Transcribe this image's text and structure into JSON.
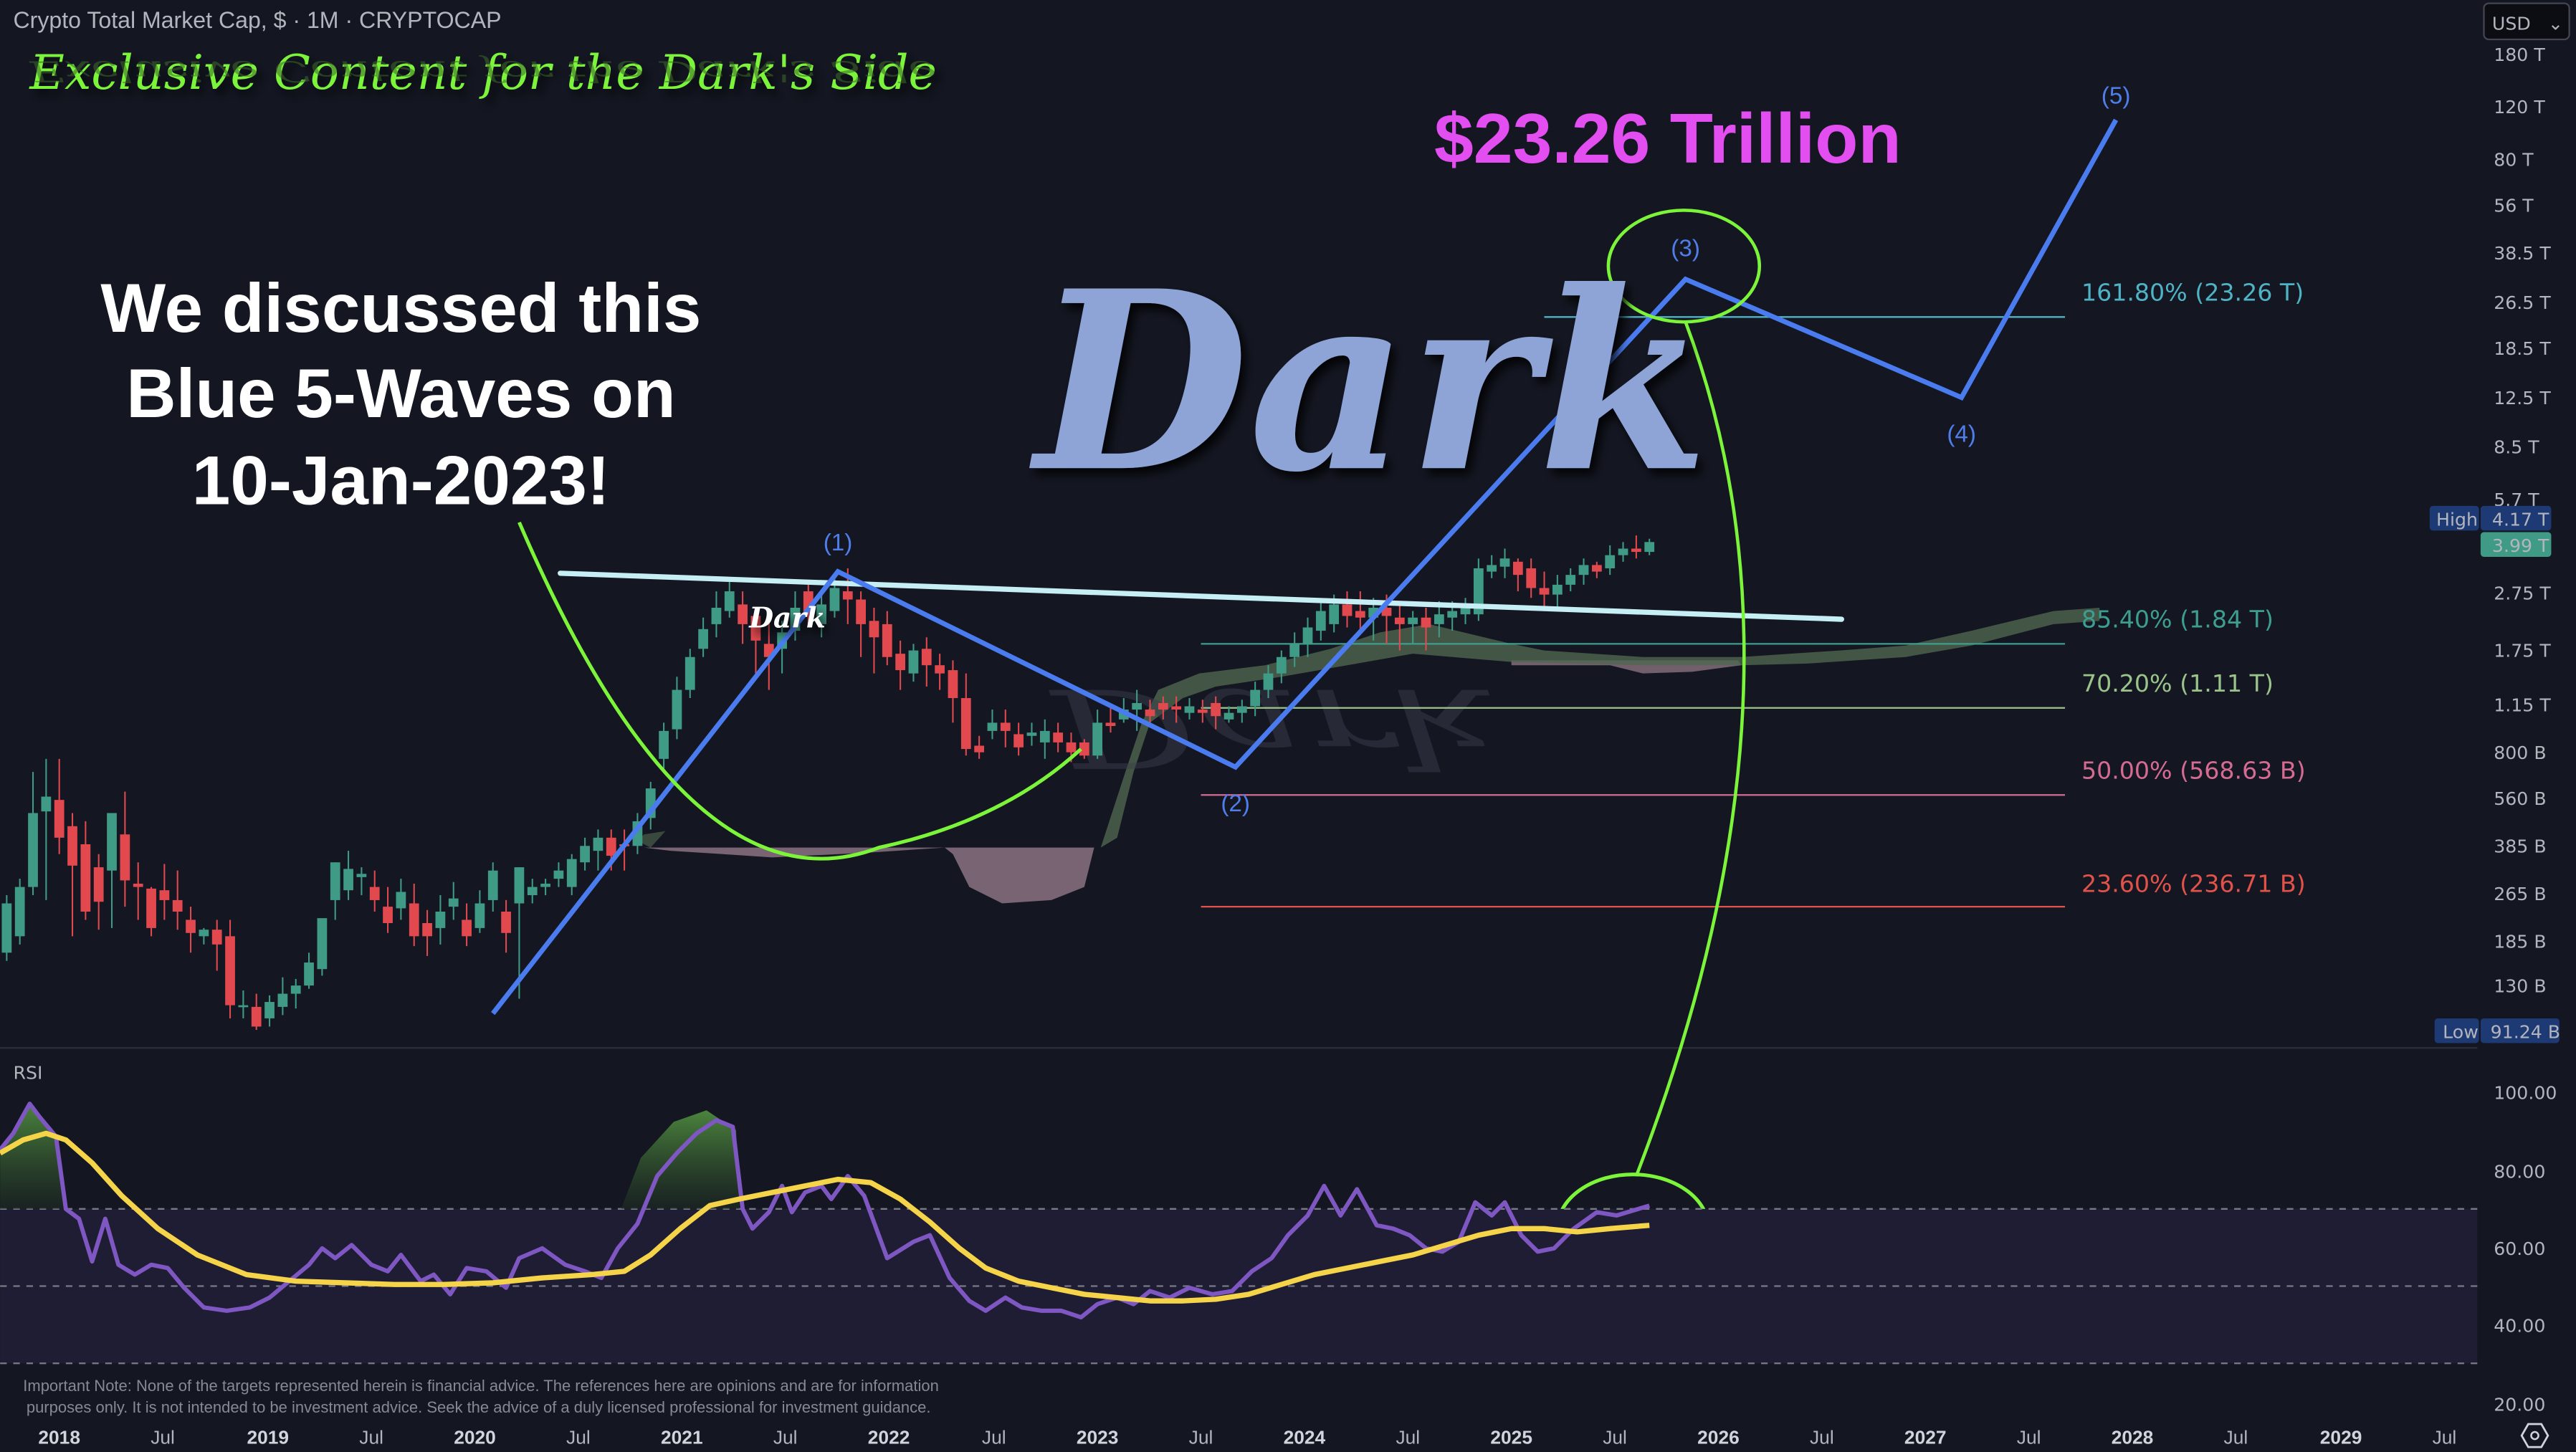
{
  "header": {
    "symbol_title": "Crypto Total Market Cap, $ · 1M · CRYPTOCAP",
    "banner": "Exclusive Content for the Dark's Side",
    "currency_select": "USD"
  },
  "annotations": {
    "headline_lines": [
      "We discussed this",
      "Blue 5-Waves on",
      "10-Jan-2023!"
    ],
    "target_text": "$23.26 Trillion",
    "watermark": "Dark",
    "small_watermark": "Dark",
    "wave_labels": [
      "(1)",
      "(2)",
      "(3)",
      "(4)",
      "(5)"
    ],
    "disclaimer_lines": [
      "Important Note: None of the targets represented herein is financial advice. The references here are opinions and are for information",
      "purposes only. It is not intended to be investment advice. Seek the advice of a duly licensed professional for investment guidance."
    ]
  },
  "price_axis": {
    "ticks": [
      "180 T",
      "120 T",
      "80 T",
      "56 T",
      "38.5 T",
      "26.5 T",
      "18.5 T",
      "12.5 T",
      "8.5 T",
      "5.7 T",
      "2.75 T",
      "1.75 T",
      "1.15 T",
      "800 B",
      "560 B",
      "385 B",
      "265 B",
      "185 B",
      "130 B"
    ],
    "high_label": "High",
    "high_value": "4.17 T",
    "last_value": "3.99 T",
    "low_label": "Low",
    "low_value": "91.24 B"
  },
  "rsi_panel": {
    "label": "RSI",
    "ticks": [
      "100.00",
      "80.00",
      "60.00",
      "40.00",
      "20.00"
    ]
  },
  "time_axis": {
    "labels": [
      "2018",
      "Jul",
      "2019",
      "Jul",
      "2020",
      "Jul",
      "2021",
      "Jul",
      "2022",
      "Jul",
      "2023",
      "Jul",
      "2024",
      "Jul",
      "2025",
      "Jul",
      "2026",
      "Jul",
      "2027",
      "Jul",
      "2028",
      "Jul",
      "2029",
      "Jul"
    ]
  },
  "fib_levels": [
    {
      "label": "161.80% (23.26 T)",
      "color": "#4fb3c6"
    },
    {
      "label": "85.40% (1.84 T)",
      "color": "#3d9e8f"
    },
    {
      "label": "70.20% (1.11 T)",
      "color": "#9bc48a"
    },
    {
      "label": "50.00% (568.63 B)",
      "color": "#d56b93"
    },
    {
      "label": "23.60% (236.71 B)",
      "color": "#e0524a"
    }
  ],
  "colors": {
    "background": "#141722",
    "up_candle": "#3f9b85",
    "down_candle": "#e2494f",
    "wave_line": "#4a7cf0",
    "trendline": "#c6eef5",
    "highlight_green": "#7cf43a",
    "target_magenta": "#e24ef0",
    "rsi_line": "#7e57c2",
    "rsi_ma": "#f5d44a"
  },
  "chart_data": {
    "type": "candlestick",
    "title": "Crypto Total Market Cap, $ · 1M · CRYPTOCAP",
    "xlabel": "",
    "ylabel": "USD (log scale)",
    "x_range": [
      "2017-11",
      "2029-12"
    ],
    "y_scale": "log",
    "ylim": [
      "91.24 B",
      "180 T"
    ],
    "series_summary": {
      "2018_peak": "~820 B",
      "2018_2019_low": "~110 B",
      "2021_peak_wave1": "~3.0 T",
      "2022_low": "~800 B",
      "2024_high": "~2.7 T",
      "all_time_high": "4.17 T",
      "last_close": "3.99 T",
      "all_time_low_visible": "91.24 B"
    },
    "elliott_waves": [
      {
        "label": "start",
        "date": "2020-03",
        "value_T": 0.14
      },
      {
        "label": "(1)",
        "date": "2021-11",
        "value_T": 3.0
      },
      {
        "label": "(2)",
        "date": "2023-09",
        "value_T": 0.9
      },
      {
        "label": "(3)",
        "date": "2026-01",
        "value_T": 30.0
      },
      {
        "label": "(4)",
        "date": "2027-06",
        "value_T": 12.0
      },
      {
        "label": "(5)",
        "date": "2028-01",
        "value_T": 110.0
      }
    ],
    "fibonacci_levels": [
      {
        "ratio": "161.80%",
        "value": "23.26 T"
      },
      {
        "ratio": "85.40%",
        "value": "1.84 T"
      },
      {
        "ratio": "70.20%",
        "value": "1.11 T"
      },
      {
        "ratio": "50.00%",
        "value": "568.63 B"
      },
      {
        "ratio": "23.60%",
        "value": "236.71 B"
      }
    ],
    "price_ticks": [
      "180T",
      "120T",
      "80T",
      "56T",
      "38.5T",
      "26.5T",
      "18.5T",
      "12.5T",
      "8.5T",
      "5.7T",
      "2.75T",
      "1.75T",
      "1.15T",
      "800B",
      "560B",
      "385B",
      "265B",
      "185B",
      "130B"
    ],
    "rsi": {
      "ylim": [
        20,
        100
      ],
      "bands": [
        30,
        50,
        70
      ],
      "peaks": [
        {
          "date": "2018-01",
          "value": 95
        },
        {
          "date": "2021-04",
          "value": 93
        },
        {
          "date": "2024-03",
          "value": 79
        },
        {
          "date": "2024-12",
          "value": 76
        }
      ],
      "last_value": 71,
      "ma_last_value": 65
    },
    "grid": false,
    "legend": "none"
  }
}
